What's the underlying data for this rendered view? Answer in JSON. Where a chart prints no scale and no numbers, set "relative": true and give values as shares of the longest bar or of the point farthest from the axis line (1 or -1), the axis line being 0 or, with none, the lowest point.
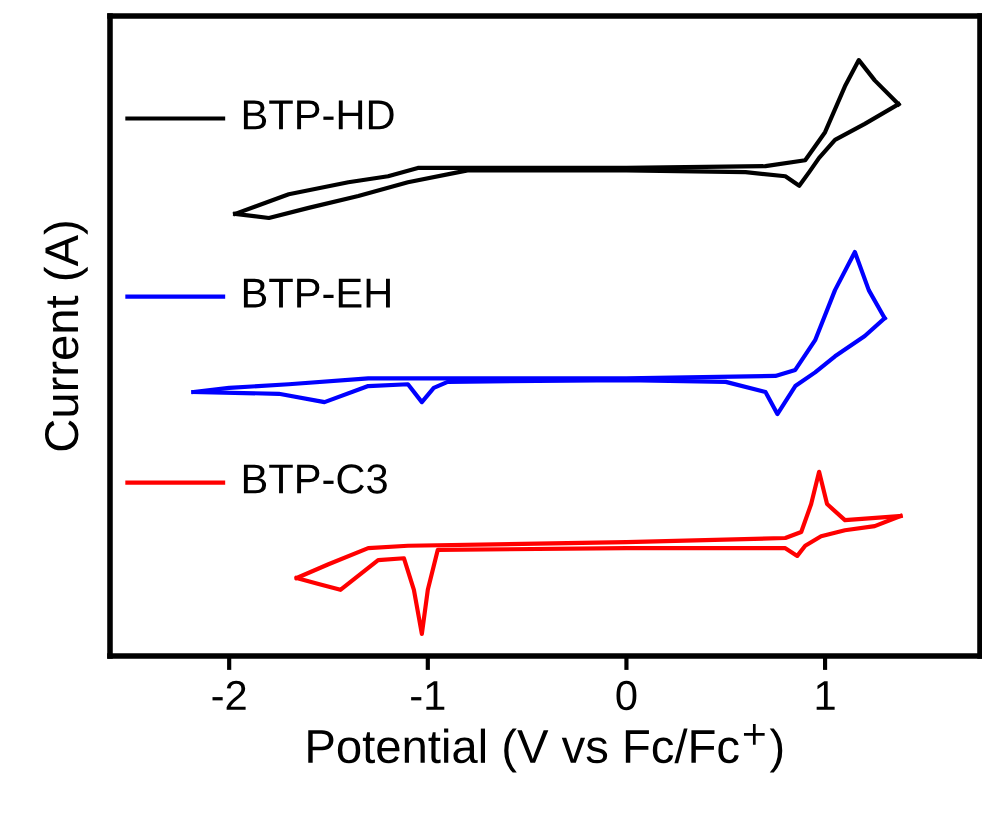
{
  "chart_data": {
    "type": "line",
    "relative": true,
    "xlabel": "Potential (V vs Fc/Fc$^{+}$)",
    "ylabel": "Current (A)",
    "xlim": [
      -2.6,
      1.78
    ],
    "xticks": [
      -2,
      -1,
      0,
      1
    ],
    "tick_labels": "x",
    "grid": false,
    "legend": "left",
    "marker": "none",
    "line_style": "solid",
    "series": [
      {
        "name": "BTP-HD",
        "color": "#000000",
        "x": [
          -1.97,
          -1.7,
          -1.4,
          -1.2,
          -1.05,
          -0.8,
          0,
          0.7,
          0.9,
          1.0,
          1.1,
          1.17,
          1.25,
          1.37
        ],
        "values": [
          0.742,
          0.775,
          0.795,
          0.805,
          0.819,
          0.819,
          0.819,
          0.822,
          0.832,
          0.879,
          0.956,
          1.0,
          0.966,
          0.926
        ]
      },
      {
        "color": "#000000",
        "x": [
          1.37,
          1.2,
          1.05,
          0.97,
          0.92,
          0.87,
          0.8,
          0.6,
          0,
          -0.8,
          -1.1,
          -1.35,
          -1.6,
          -1.8,
          -1.97
        ],
        "values": [
          0.926,
          0.893,
          0.866,
          0.836,
          0.812,
          0.789,
          0.805,
          0.812,
          0.815,
          0.815,
          0.795,
          0.772,
          0.752,
          0.735,
          0.742
        ]
      },
      {
        "name": "BTP-EH",
        "color": "#0000ff",
        "x": [
          -2.18,
          -2.0,
          -1.7,
          -1.3,
          -1.0,
          0,
          0.75,
          0.85,
          0.95,
          1.05,
          1.15,
          1.22,
          1.3
        ],
        "values": [
          0.443,
          0.45,
          0.456,
          0.466,
          0.466,
          0.466,
          0.47,
          0.48,
          0.53,
          0.614,
          0.678,
          0.614,
          0.567
        ]
      },
      {
        "color": "#0000ff",
        "x": [
          1.3,
          1.2,
          1.05,
          0.95,
          0.85,
          0.76,
          0.7,
          0.5,
          0,
          -0.9,
          -0.97,
          -1.03,
          -1.1,
          -1.3,
          -1.52,
          -1.75,
          -2.18
        ],
        "values": [
          0.567,
          0.537,
          0.503,
          0.476,
          0.453,
          0.406,
          0.443,
          0.46,
          0.463,
          0.46,
          0.45,
          0.426,
          0.456,
          0.453,
          0.426,
          0.44,
          0.443
        ]
      },
      {
        "name": "BTP-C3",
        "color": "#ff0000",
        "x": [
          -1.66,
          -1.5,
          -1.3,
          -1.1,
          0,
          0.8,
          0.88,
          0.93,
          0.97,
          1.01,
          1.1,
          1.38
        ],
        "values": [
          0.131,
          0.154,
          0.181,
          0.185,
          0.191,
          0.198,
          0.208,
          0.255,
          0.309,
          0.255,
          0.228,
          0.235
        ]
      },
      {
        "color": "#ff0000",
        "x": [
          1.38,
          1.25,
          1.1,
          0.98,
          0.9,
          0.86,
          0.8,
          0,
          -0.95,
          -1.0,
          -1.03,
          -1.07,
          -1.12,
          -1.25,
          -1.44,
          -1.55,
          -1.66
        ],
        "values": [
          0.235,
          0.218,
          0.211,
          0.201,
          0.185,
          0.168,
          0.181,
          0.181,
          0.178,
          0.111,
          0.037,
          0.111,
          0.164,
          0.161,
          0.111,
          0.121,
          0.131
        ]
      }
    ]
  }
}
